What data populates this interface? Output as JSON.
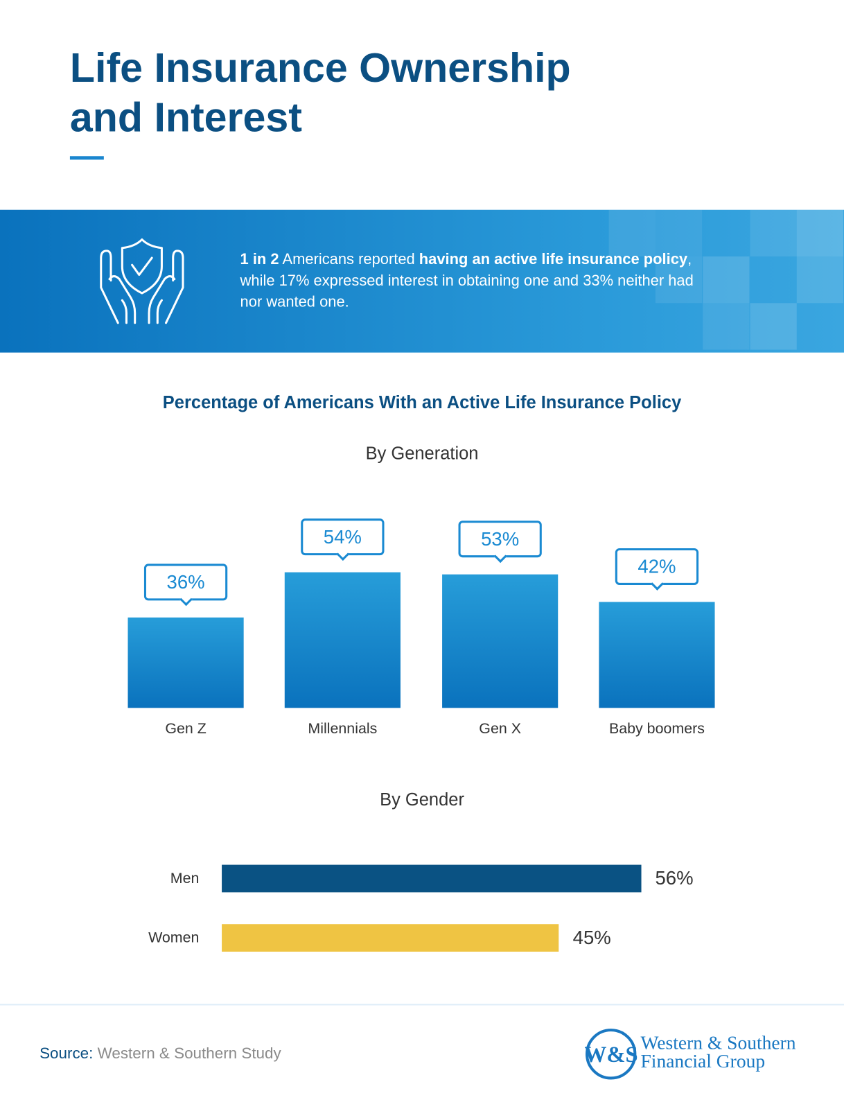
{
  "header": {
    "title_line1": "Life Insurance Ownership",
    "title_line2": "and Interest"
  },
  "banner": {
    "icon": "hands-holding-shield-check-icon",
    "lead_bold": "1 in 2",
    "text1": " Americans reported ",
    "bold2": "having an active life insurance policy",
    "text2": ", while 17% expressed interest in obtaining one and 33% neither had nor wanted one."
  },
  "chart_data": [
    {
      "type": "bar",
      "title": "Percentage of Americans With an Active Life Insurance Policy",
      "subtitle": "By Generation",
      "categories": [
        "Gen Z",
        "Millennials",
        "Gen X",
        "Baby boomers"
      ],
      "values": [
        36,
        54,
        53,
        42
      ],
      "labels": [
        "36%",
        "54%",
        "53%",
        "42%"
      ],
      "unit": "%",
      "ylim": [
        0,
        60
      ],
      "color": "#1a86cf"
    },
    {
      "type": "bar",
      "orientation": "horizontal",
      "subtitle": "By Gender",
      "categories": [
        "Men",
        "Women"
      ],
      "values": [
        56,
        45
      ],
      "labels": [
        "56%",
        "45%"
      ],
      "unit": "%",
      "colors": [
        "#0a5283",
        "#efc443"
      ]
    }
  ],
  "footer": {
    "source_label": "Source:",
    "source_value": "Western & Southern Study",
    "logo_text_line1": "Western & Southern",
    "logo_text_line2": "Financial Group",
    "logo_mark": "W&S"
  }
}
